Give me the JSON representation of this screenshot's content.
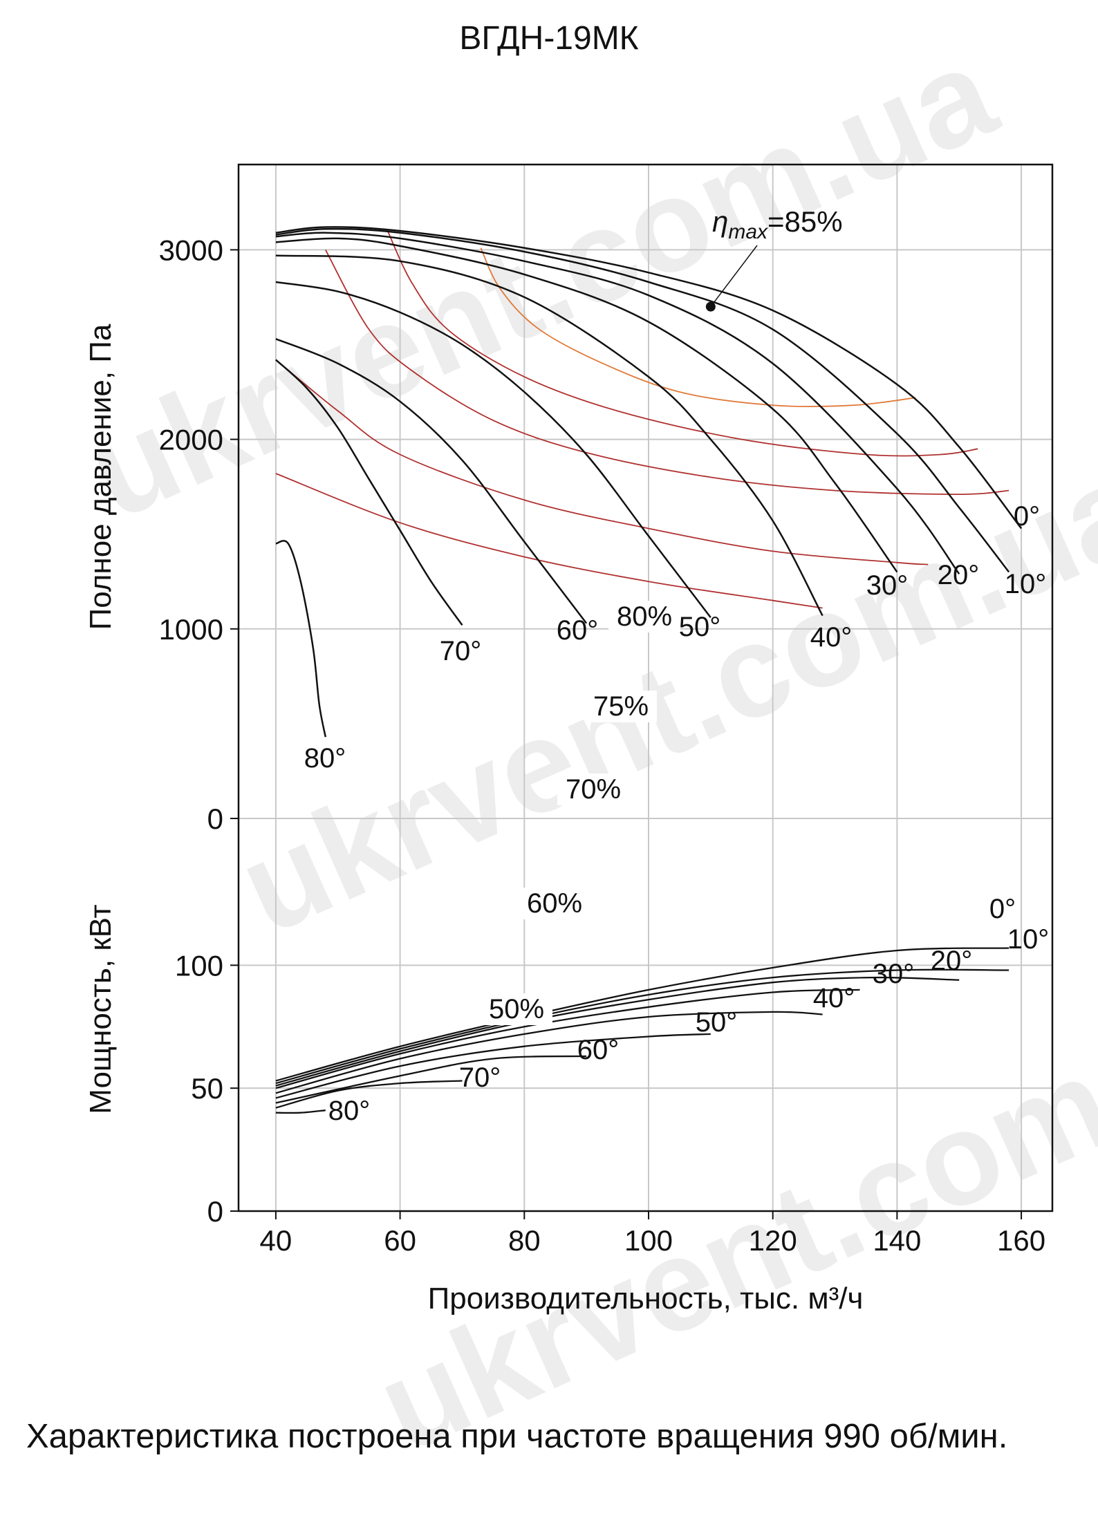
{
  "watermark": "ukrvent.com.ua",
  "caption": "Характеристика построена при частоте вращения 990 об/мин.",
  "colors": {
    "fan_curve": "#111111",
    "efficiency_curve": "#b03030",
    "eff_80": "#e07a3a",
    "grid": "#c8c8c8"
  },
  "chart_data": [
    {
      "type": "line",
      "title": "ВГДН-19МК",
      "xlabel": "Производительность, тыс. м³/ч",
      "ylabel": "Полное давление, Па",
      "xlim": [
        34,
        165
      ],
      "ylim": [
        0,
        3450
      ],
      "xticks": [
        40,
        60,
        80,
        100,
        120,
        140,
        160
      ],
      "yticks": [
        0,
        1000,
        2000,
        3000
      ],
      "grid": true,
      "annotation": {
        "label_prefix": "η",
        "label_sub": "max",
        "label_suffix": "=85%",
        "point": [
          110,
          2700
        ]
      },
      "series": [
        {
          "name": "0°",
          "x": [
            40,
            48,
            60,
            80,
            100,
            120,
            140,
            150,
            160
          ],
          "y": [
            3090,
            3120,
            3100,
            3010,
            2880,
            2680,
            2290,
            1960,
            1530
          ]
        },
        {
          "name": "10°",
          "x": [
            40,
            48,
            60,
            80,
            100,
            120,
            140,
            150,
            158
          ],
          "y": [
            3080,
            3110,
            3090,
            2990,
            2830,
            2580,
            2030,
            1640,
            1300
          ]
        },
        {
          "name": "20°",
          "x": [
            40,
            48,
            60,
            80,
            100,
            120,
            140,
            150
          ],
          "y": [
            3070,
            3090,
            3060,
            2940,
            2760,
            2400,
            1740,
            1290
          ]
        },
        {
          "name": "30°",
          "x": [
            40,
            50,
            60,
            80,
            100,
            120,
            130,
            140
          ],
          "y": [
            3040,
            3060,
            3020,
            2870,
            2620,
            2160,
            1770,
            1300
          ]
        },
        {
          "name": "40°",
          "x": [
            40,
            60,
            80,
            100,
            110,
            120,
            128
          ],
          "y": [
            2970,
            2940,
            2750,
            2330,
            2000,
            1570,
            1070
          ]
        },
        {
          "name": "50°",
          "x": [
            40,
            50,
            60,
            70,
            80,
            90,
            100,
            110
          ],
          "y": [
            2830,
            2780,
            2670,
            2500,
            2250,
            1920,
            1490,
            1060
          ]
        },
        {
          "name": "60°",
          "x": [
            40,
            50,
            60,
            70,
            80,
            90
          ],
          "y": [
            2530,
            2400,
            2200,
            1890,
            1460,
            1030
          ]
        },
        {
          "name": "70°",
          "x": [
            40,
            45,
            50,
            55,
            60,
            65,
            70
          ],
          "y": [
            2420,
            2270,
            2060,
            1790,
            1520,
            1250,
            1020
          ]
        },
        {
          "name": "80°",
          "x": [
            40,
            42,
            44,
            46,
            47,
            48
          ],
          "y": [
            1450,
            1450,
            1250,
            900,
            600,
            430
          ]
        }
      ],
      "efficiency_curves": [
        {
          "name": "50%",
          "x": [
            40,
            60,
            80,
            100,
            120,
            128
          ],
          "y": [
            1820,
            1560,
            1380,
            1250,
            1150,
            1110
          ]
        },
        {
          "name": "60%",
          "x": [
            40,
            50,
            60,
            80,
            100,
            120,
            140,
            145
          ],
          "y": [
            2420,
            2150,
            1920,
            1680,
            1530,
            1410,
            1350,
            1340
          ]
        },
        {
          "name": "70%",
          "x": [
            48,
            55,
            62,
            75,
            90,
            110,
            130,
            150,
            158
          ],
          "y": [
            3000,
            2580,
            2360,
            2100,
            1930,
            1800,
            1730,
            1710,
            1730
          ]
        },
        {
          "name": "75%",
          "x": [
            58,
            62,
            68,
            80,
            95,
            115,
            135,
            147,
            153
          ],
          "y": [
            3100,
            2820,
            2570,
            2330,
            2150,
            2000,
            1920,
            1920,
            1950
          ]
        },
        {
          "name": "80%",
          "x": [
            73,
            76,
            82,
            92,
            105,
            120,
            133,
            143
          ],
          "y": [
            3010,
            2800,
            2590,
            2410,
            2250,
            2180,
            2180,
            2220
          ]
        }
      ]
    },
    {
      "type": "line",
      "xlabel": "Производительность, тыс. м³/ч",
      "ylabel": "Мощность, кВт",
      "xlim": [
        34,
        165
      ],
      "ylim": [
        0,
        115
      ],
      "xticks": [
        40,
        60,
        80,
        100,
        120,
        140,
        160
      ],
      "yticks": [
        0,
        50,
        100
      ],
      "grid": true,
      "series": [
        {
          "name": "0°",
          "x": [
            40,
            60,
            80,
            100,
            120,
            140,
            158
          ],
          "y": [
            53,
            67,
            79,
            90,
            99,
            106,
            107
          ]
        },
        {
          "name": "10°",
          "x": [
            40,
            60,
            80,
            100,
            120,
            140,
            158
          ],
          "y": [
            52,
            66,
            78,
            88,
            95,
            98,
            98
          ]
        },
        {
          "name": "20°",
          "x": [
            40,
            60,
            80,
            100,
            120,
            136,
            150
          ],
          "y": [
            51,
            65,
            77,
            86,
            93,
            95,
            94
          ]
        },
        {
          "name": "30°",
          "x": [
            40,
            60,
            80,
            100,
            120,
            134
          ],
          "y": [
            50,
            64,
            75,
            83,
            89,
            90
          ]
        },
        {
          "name": "40°",
          "x": [
            40,
            60,
            80,
            100,
            120,
            128
          ],
          "y": [
            48,
            62,
            72,
            79,
            81,
            80
          ]
        },
        {
          "name": "50°",
          "x": [
            40,
            60,
            80,
            100,
            110
          ],
          "y": [
            46,
            59,
            67,
            71,
            72
          ]
        },
        {
          "name": "60°",
          "x": [
            40,
            60,
            75,
            90
          ],
          "y": [
            44,
            55,
            62,
            63
          ]
        },
        {
          "name": "70°",
          "x": [
            40,
            50,
            60,
            70
          ],
          "y": [
            42,
            49,
            52,
            53
          ]
        },
        {
          "name": "80°",
          "x": [
            40,
            44,
            48
          ],
          "y": [
            40,
            40,
            41
          ]
        }
      ]
    }
  ]
}
